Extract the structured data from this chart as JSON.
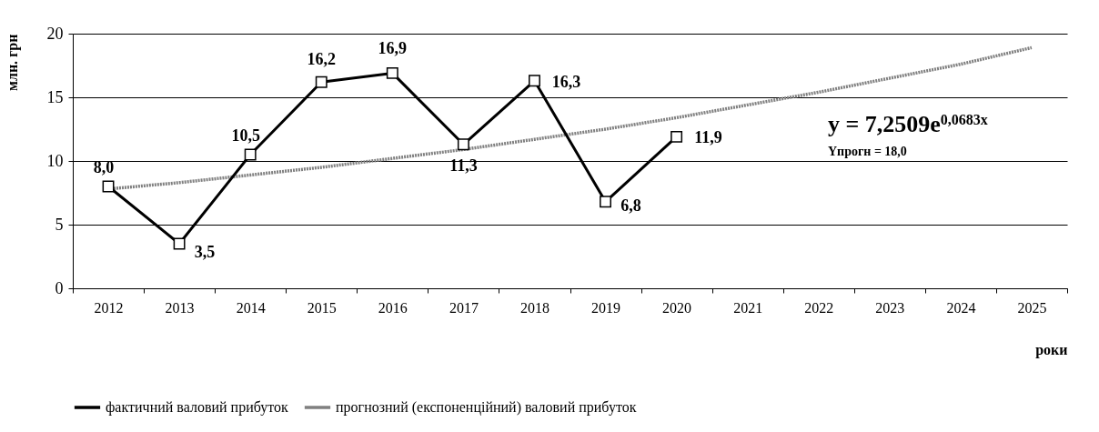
{
  "chart_data": {
    "type": "line",
    "xlabel": "роки",
    "ylabel": "млн. грн",
    "categories": [
      "2012",
      "2013",
      "2014",
      "2015",
      "2016",
      "2017",
      "2018",
      "2019",
      "2020",
      "2021",
      "2022",
      "2023",
      "2024",
      "2025"
    ],
    "series": [
      {
        "name": "фактичний валовий прибуток",
        "color": "#000000",
        "marker": "square",
        "line_style": "solid",
        "values": [
          8.0,
          3.5,
          10.5,
          16.2,
          16.9,
          11.3,
          16.3,
          6.8,
          11.9,
          null,
          null,
          null,
          null,
          null
        ],
        "value_labels": [
          "8,0",
          "3,5",
          "10,5",
          "16,2",
          "16,9",
          "11,3",
          "16,3",
          "6,8",
          "11,9",
          null,
          null,
          null,
          null,
          null
        ]
      },
      {
        "name": "прогнозний (експоненційний) валовий прибуток",
        "color": "#808080",
        "marker": "none",
        "line_style": "dotted",
        "values": [
          7.8,
          8.3,
          8.9,
          9.5,
          10.2,
          10.9,
          11.7,
          12.5,
          13.4,
          14.4,
          15.4,
          16.5,
          17.6,
          18.9
        ]
      }
    ],
    "ylim": [
      0,
      20
    ],
    "yticks": [
      0,
      5,
      10,
      15,
      20
    ],
    "grid": "y",
    "legend": "bottom",
    "annotations": [
      "y = 7,2509e$^{0,0683x}$",
      "Yпрогн = 18,0"
    ]
  }
}
